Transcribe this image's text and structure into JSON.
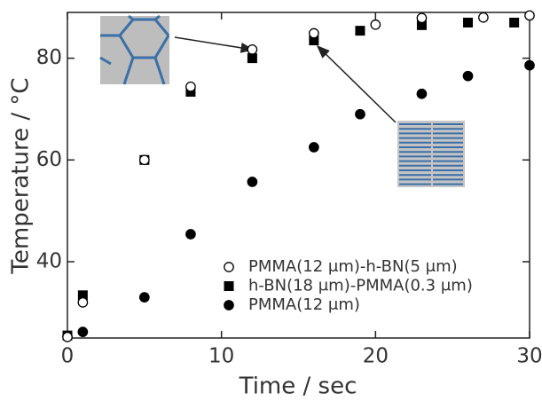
{
  "chart_data": {
    "type": "scatter",
    "x_label": "Time / sec",
    "y_label": "Temperature / °C",
    "xlim": [
      0,
      30
    ],
    "ylim": [
      25,
      89
    ],
    "xticks": [
      0,
      10,
      20,
      30
    ],
    "yticks": [
      40,
      60,
      80
    ],
    "series": [
      {
        "name": "PMMA(12 μm)-h-BN(5 μm)",
        "color": "#000000",
        "marker": "open-circle",
        "x": [
          0,
          1,
          5,
          8,
          12,
          16,
          20,
          23,
          27,
          30
        ],
        "values": [
          25.2,
          32,
          60,
          74.4,
          81.7,
          84.9,
          86.6,
          87.9,
          88,
          88.4
        ]
      },
      {
        "name": "h-BN(18 μm)-PMMA(0.3 μm)",
        "color": "#000000",
        "marker": "square",
        "x": [
          0,
          1,
          5,
          8,
          12,
          16,
          19,
          23,
          26,
          29
        ],
        "values": [
          25.5,
          33.4,
          60,
          73.4,
          80,
          83.5,
          85.4,
          86.5,
          87,
          87
        ]
      },
      {
        "name": "PMMA(12 μm)",
        "color": "#000000",
        "marker": "circle",
        "x": [
          0,
          1,
          5,
          8,
          12,
          16,
          19,
          23,
          26,
          30
        ],
        "values": [
          25.3,
          26.2,
          33,
          45.4,
          55.7,
          62.5,
          69,
          73,
          76.5,
          78.6
        ]
      }
    ]
  }
}
